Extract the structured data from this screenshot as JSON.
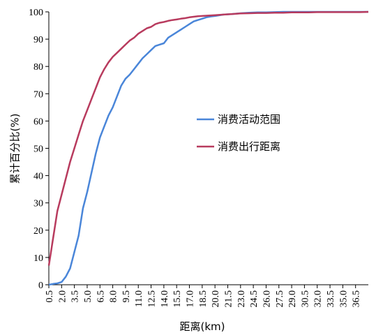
{
  "chart_data": {
    "type": "line",
    "title": "",
    "xlabel": "距离(km)",
    "ylabel": "累计百分比(%)",
    "xlim": [
      0.5,
      38
    ],
    "ylim": [
      0,
      100
    ],
    "x_ticks": [
      "0.5",
      "2.0",
      "3.5",
      "5.0",
      "6.5",
      "8.0",
      "9.5",
      "11.0",
      "12.5",
      "14.0",
      "15.5",
      "17.0",
      "18.5",
      "20.0",
      "21.5",
      "23.0",
      "24.5",
      "26.0",
      "27.5",
      "29.0",
      "30.5",
      "32.0",
      "33.5",
      "35.0",
      "36.5"
    ],
    "y_ticks": [
      "0",
      "10",
      "20",
      "30",
      "40",
      "50",
      "60",
      "70",
      "80",
      "90",
      "100"
    ],
    "grid": false,
    "legend_position": "center-right",
    "series": [
      {
        "name": "消费活动范围",
        "color": "#4a86d9",
        "points": [
          [
            0.5,
            0
          ],
          [
            1.0,
            0.3
          ],
          [
            1.5,
            0.5
          ],
          [
            2.0,
            1
          ],
          [
            2.5,
            3
          ],
          [
            3.0,
            6
          ],
          [
            3.5,
            12
          ],
          [
            4.0,
            18
          ],
          [
            4.5,
            28
          ],
          [
            5.0,
            34
          ],
          [
            5.5,
            41
          ],
          [
            6.0,
            48
          ],
          [
            6.5,
            54
          ],
          [
            7.0,
            58
          ],
          [
            7.5,
            62
          ],
          [
            8.0,
            65
          ],
          [
            8.5,
            69
          ],
          [
            9.0,
            73
          ],
          [
            9.5,
            75.5
          ],
          [
            10.0,
            77
          ],
          [
            10.5,
            79
          ],
          [
            11.0,
            81
          ],
          [
            11.5,
            83
          ],
          [
            12.0,
            84.5
          ],
          [
            12.5,
            86
          ],
          [
            13.0,
            87.5
          ],
          [
            13.5,
            88
          ],
          [
            14.0,
            88.5
          ],
          [
            14.5,
            90.5
          ],
          [
            15.0,
            91.5
          ],
          [
            15.5,
            92.5
          ],
          [
            16.0,
            93.5
          ],
          [
            16.5,
            94.5
          ],
          [
            17.0,
            95.5
          ],
          [
            17.5,
            96.5
          ],
          [
            18.0,
            97
          ],
          [
            18.5,
            97.5
          ],
          [
            19.0,
            98
          ],
          [
            19.5,
            98.3
          ],
          [
            20.0,
            98.5
          ],
          [
            21.0,
            99
          ],
          [
            22.0,
            99.2
          ],
          [
            23.0,
            99.5
          ],
          [
            24.0,
            99.7
          ],
          [
            25.0,
            99.8
          ],
          [
            26.0,
            99.8
          ],
          [
            27.0,
            99.9
          ],
          [
            28.0,
            100
          ],
          [
            29.0,
            100
          ],
          [
            30.0,
            100
          ],
          [
            31.0,
            100
          ],
          [
            32.0,
            100
          ],
          [
            33.0,
            100
          ],
          [
            34.0,
            100
          ],
          [
            35.0,
            100
          ],
          [
            36.0,
            100
          ],
          [
            37.0,
            100
          ],
          [
            38.0,
            100
          ]
        ]
      },
      {
        "name": "消费出行距离",
        "color": "#b83b5e",
        "points": [
          [
            0.5,
            7
          ],
          [
            1.0,
            17
          ],
          [
            1.5,
            27
          ],
          [
            2.0,
            33
          ],
          [
            2.5,
            39
          ],
          [
            3.0,
            45
          ],
          [
            3.5,
            50
          ],
          [
            4.0,
            55
          ],
          [
            4.5,
            60
          ],
          [
            5.0,
            64
          ],
          [
            5.5,
            68
          ],
          [
            6.0,
            72
          ],
          [
            6.5,
            76
          ],
          [
            7.0,
            79
          ],
          [
            7.5,
            81.5
          ],
          [
            8.0,
            83.5
          ],
          [
            8.5,
            85
          ],
          [
            9.0,
            86.5
          ],
          [
            9.5,
            88
          ],
          [
            10.0,
            89.5
          ],
          [
            10.5,
            90.5
          ],
          [
            11.0,
            92
          ],
          [
            11.5,
            93
          ],
          [
            12.0,
            94
          ],
          [
            12.5,
            94.5
          ],
          [
            13.0,
            95.5
          ],
          [
            13.5,
            96
          ],
          [
            14.0,
            96.3
          ],
          [
            14.5,
            96.7
          ],
          [
            15.0,
            97
          ],
          [
            15.5,
            97.2
          ],
          [
            16.0,
            97.5
          ],
          [
            16.5,
            97.7
          ],
          [
            17.0,
            98
          ],
          [
            17.5,
            98.2
          ],
          [
            18.0,
            98.4
          ],
          [
            18.5,
            98.5
          ],
          [
            19.0,
            98.6
          ],
          [
            19.5,
            98.7
          ],
          [
            20.0,
            98.8
          ],
          [
            21.0,
            99
          ],
          [
            22.0,
            99.2
          ],
          [
            23.0,
            99.4
          ],
          [
            24.0,
            99.5
          ],
          [
            25.0,
            99.6
          ],
          [
            26.0,
            99.6
          ],
          [
            27.0,
            99.7
          ],
          [
            28.0,
            99.7
          ],
          [
            29.0,
            99.8
          ],
          [
            30.0,
            99.8
          ],
          [
            31.0,
            99.8
          ],
          [
            32.0,
            99.9
          ],
          [
            33.0,
            99.9
          ],
          [
            34.0,
            99.9
          ],
          [
            35.0,
            99.9
          ],
          [
            36.0,
            99.9
          ],
          [
            37.0,
            99.9
          ],
          [
            38.0,
            100
          ]
        ]
      }
    ]
  }
}
